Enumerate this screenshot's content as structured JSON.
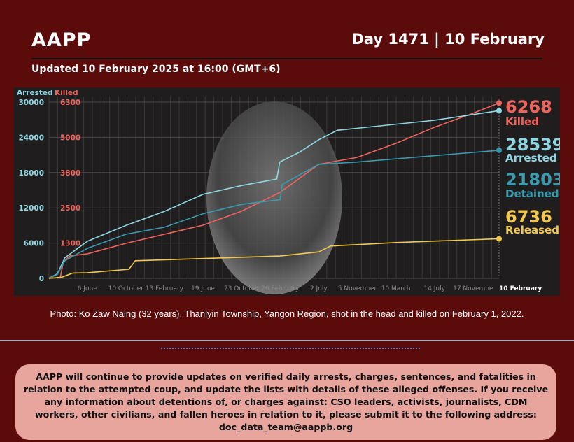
{
  "header": {
    "title": "AAPP",
    "day": "Day 1471 | 10 February",
    "updated": "Updated 10 February 2025 at 16:00 (GMT+6)"
  },
  "colors": {
    "background": "#5c0b0b",
    "arrested": "#8fd6e3",
    "detained": "#3a9bb0",
    "killed": "#f0635c",
    "released": "#f2c94c",
    "notice_bg": "#e7a59e"
  },
  "photo": {
    "icon": "portrait-photo",
    "caption": "Photo: Ko Zaw Naing (32 years), Thanlyin Township, Yangon Region, shot in the head and killed on February 1, 2022."
  },
  "notice": "AAPP will continue to provide updates on verified daily arrests, charges, sentences, and fatalities in relation to the attempted coup, and update the lists with details of these alleged offenses. If you receive any information about detentions of, or charges against: CSO leaders, activists, journalists, CDM workers, other civilians, and fallen heroes in relation to it, please submit it to the following address: doc_data_team@aappb.org",
  "chart_data": {
    "type": "line",
    "grid": true,
    "x_range": [
      "2021-02-01",
      "2025-02-10"
    ],
    "left_axis": {
      "label": "Arrested",
      "ticks": [
        0,
        6000,
        12000,
        18000,
        24000,
        30000
      ],
      "range": [
        0,
        30000
      ]
    },
    "right_axis": {
      "label": "Killed",
      "ticks": [
        "",
        "1300",
        "2500",
        "3800",
        "5000",
        "6300"
      ],
      "range": [
        0,
        6300
      ]
    },
    "x_ticks": [
      {
        "date": "2021-06-06",
        "label": "6 June"
      },
      {
        "date": "2021-10-10",
        "label": "10 October"
      },
      {
        "date": "2022-02-13",
        "label": "13 February"
      },
      {
        "date": "2022-06-19",
        "label": "19 June"
      },
      {
        "date": "2022-10-23",
        "label": "23 October"
      },
      {
        "date": "2023-02-26",
        "label": "26 February"
      },
      {
        "date": "2023-07-02",
        "label": "2 July"
      },
      {
        "date": "2023-11-05",
        "label": "5 November"
      },
      {
        "date": "2024-03-10",
        "label": "10 March"
      },
      {
        "date": "2024-07-14",
        "label": "14 July"
      },
      {
        "date": "2024-11-17",
        "label": "17 Novembe"
      },
      {
        "date": "2025-02-10",
        "label": "10 February"
      }
    ],
    "series": [
      {
        "name": "Killed",
        "axis": "right",
        "color": "#f0635c",
        "final": "6268",
        "points": [
          [
            "2021-02-01",
            0
          ],
          [
            "2021-03-10",
            30
          ],
          [
            "2021-03-20",
            600
          ],
          [
            "2021-04-10",
            800
          ],
          [
            "2021-06-06",
            875
          ],
          [
            "2021-10-10",
            1250
          ],
          [
            "2022-02-13",
            1575
          ],
          [
            "2022-06-19",
            1900
          ],
          [
            "2022-10-23",
            2400
          ],
          [
            "2023-02-26",
            3075
          ],
          [
            "2023-07-02",
            4075
          ],
          [
            "2023-11-05",
            4325
          ],
          [
            "2024-03-10",
            4825
          ],
          [
            "2024-07-14",
            5400
          ],
          [
            "2024-11-17",
            5900
          ],
          [
            "2025-02-10",
            6268
          ]
        ]
      },
      {
        "name": "Arrested",
        "axis": "left",
        "color": "#8fd6e3",
        "final": "28539",
        "points": [
          [
            "2021-02-01",
            0
          ],
          [
            "2021-03-01",
            800
          ],
          [
            "2021-03-25",
            3500
          ],
          [
            "2021-06-06",
            6300
          ],
          [
            "2021-10-10",
            9000
          ],
          [
            "2022-02-13",
            11400
          ],
          [
            "2022-06-19",
            14300
          ],
          [
            "2022-10-23",
            15800
          ],
          [
            "2023-02-15",
            16900
          ],
          [
            "2023-02-25",
            19800
          ],
          [
            "2023-05-01",
            21500
          ],
          [
            "2023-07-02",
            23600
          ],
          [
            "2023-09-01",
            25200
          ],
          [
            "2024-07-14",
            26900
          ],
          [
            "2025-02-10",
            28539
          ]
        ]
      },
      {
        "name": "Detained",
        "axis": "left",
        "color": "#3a9bb0",
        "final": "21803",
        "points": [
          [
            "2021-02-01",
            0
          ],
          [
            "2021-03-01",
            700
          ],
          [
            "2021-03-25",
            3000
          ],
          [
            "2021-06-06",
            5100
          ],
          [
            "2021-10-10",
            7500
          ],
          [
            "2022-02-13",
            8700
          ],
          [
            "2022-06-19",
            11000
          ],
          [
            "2022-10-23",
            12600
          ],
          [
            "2023-02-26",
            13400
          ],
          [
            "2023-03-05",
            16000
          ],
          [
            "2023-07-02",
            19400
          ],
          [
            "2023-11-05",
            19800
          ],
          [
            "2025-02-10",
            21803
          ]
        ]
      },
      {
        "name": "Released",
        "axis": "left",
        "color": "#f2c94c",
        "final": "6736",
        "points": [
          [
            "2021-02-01",
            0
          ],
          [
            "2021-03-15",
            200
          ],
          [
            "2021-04-20",
            900
          ],
          [
            "2021-06-06",
            950
          ],
          [
            "2021-10-20",
            1550
          ],
          [
            "2021-11-10",
            3000
          ],
          [
            "2023-02-26",
            3800
          ],
          [
            "2023-07-02",
            4500
          ],
          [
            "2023-08-10",
            5500
          ],
          [
            "2024-03-10",
            6100
          ],
          [
            "2025-02-10",
            6736
          ]
        ]
      }
    ]
  }
}
